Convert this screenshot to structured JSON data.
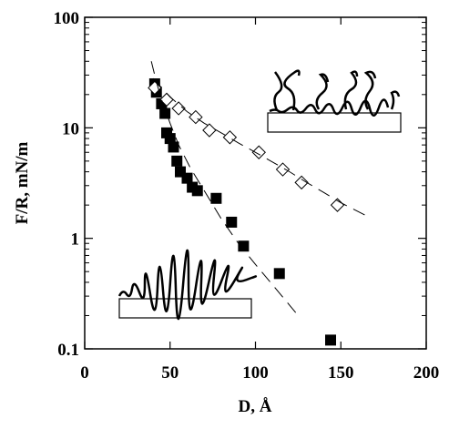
{
  "chart_data": {
    "type": "scatter",
    "xlabel": "D, Å",
    "ylabel": "F/R, mN/m",
    "xlim": [
      0,
      200
    ],
    "xticks": [
      0,
      50,
      100,
      150,
      200
    ],
    "ylim": [
      0.1,
      100
    ],
    "yticks": [
      0.1,
      1,
      10,
      100
    ],
    "yscale": "log",
    "series": [
      {
        "marker": "square",
        "color": "#000000",
        "x": [
          41,
          42,
          45,
          47,
          48,
          50,
          52,
          54,
          56,
          60,
          63,
          66,
          77,
          86,
          93,
          114,
          144
        ],
        "values": [
          25,
          21,
          16.5,
          13.5,
          9,
          8,
          6.7,
          5,
          4,
          3.5,
          2.9,
          2.7,
          2.3,
          1.4,
          0.85,
          0.48,
          0.12
        ]
      },
      {
        "marker": "diamond",
        "color": "#000000",
        "x": [
          41,
          48,
          55,
          65,
          73,
          85,
          102,
          116,
          127,
          148
        ],
        "values": [
          23,
          18,
          15,
          12.5,
          9.5,
          8.2,
          6,
          4.2,
          3.2,
          2
        ]
      },
      {
        "marker": "none",
        "style": "dashed",
        "color": "#000000",
        "x": [
          39,
          42,
          45,
          50,
          55,
          62,
          70,
          80,
          90,
          100,
          110,
          118,
          125
        ],
        "values": [
          40,
          26,
          18,
          11,
          7,
          4.3,
          2.7,
          1.5,
          0.9,
          0.58,
          0.38,
          0.27,
          0.2
        ]
      },
      {
        "marker": "none",
        "style": "dashed",
        "color": "#000000",
        "x": [
          40,
          50,
          60,
          70,
          80,
          90,
          100,
          110,
          120,
          130,
          140,
          150,
          165
        ],
        "values": [
          28,
          19,
          14,
          11,
          9,
          7.3,
          6,
          4.9,
          4,
          3.2,
          2.6,
          2.1,
          1.6
        ]
      }
    ]
  }
}
